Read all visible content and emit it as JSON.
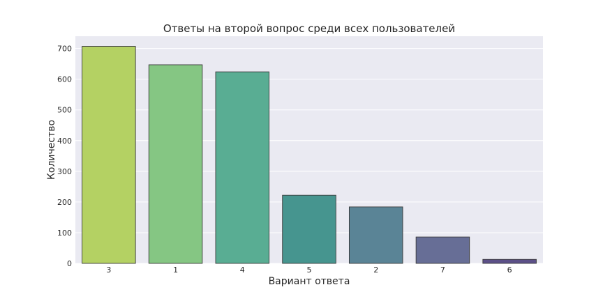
{
  "chart_data": {
    "type": "bar",
    "title": "Ответы на второй вопрос среди всех пользователей",
    "xlabel": "Вариант ответа",
    "ylabel": "Количество",
    "categories": [
      "3",
      "1",
      "4",
      "5",
      "2",
      "7",
      "6"
    ],
    "values": [
      707,
      647,
      624,
      222,
      184,
      86,
      13
    ],
    "ylim": [
      0,
      740
    ],
    "yticks": [
      "0",
      "100",
      "200",
      "300",
      "400",
      "500",
      "600",
      "700"
    ],
    "grid": true,
    "colors": [
      "#b4d163",
      "#85c683",
      "#59ad93",
      "#46958f",
      "#5a8496",
      "#676e96",
      "#5c5088"
    ],
    "background": "#eaeaf2"
  }
}
